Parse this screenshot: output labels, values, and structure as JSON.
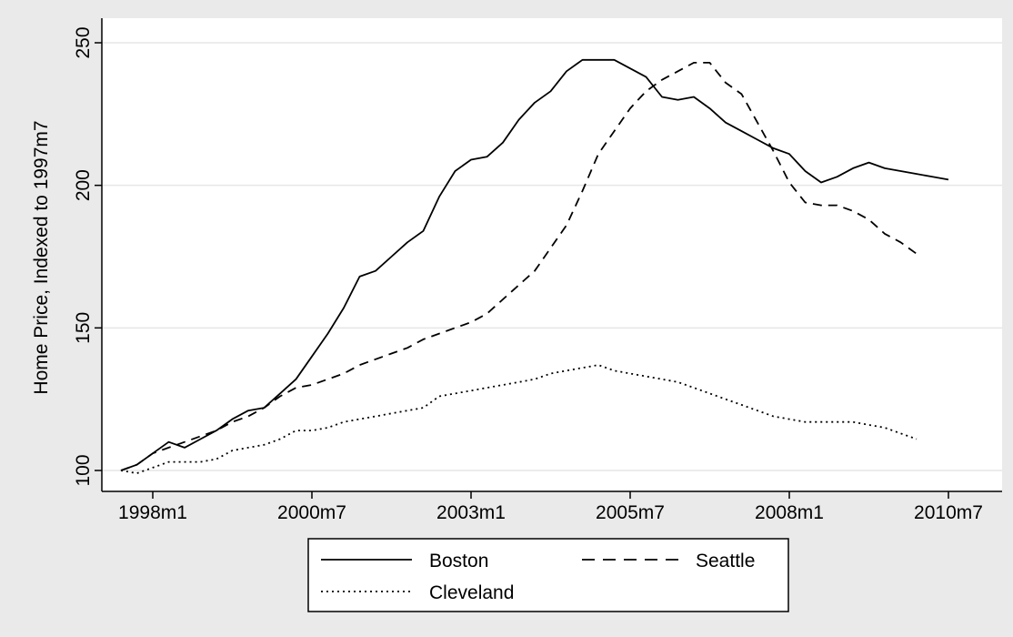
{
  "chart_data": {
    "type": "line",
    "title": "",
    "xlabel": "",
    "ylabel": "Home Price, Indexed to 1997m7",
    "x_ticks": [
      "1998m1",
      "2000m7",
      "2003m1",
      "2005m7",
      "2008m1",
      "2010m7"
    ],
    "y_ticks": [
      100,
      150,
      200,
      250
    ],
    "ylim": [
      100,
      250
    ],
    "xlim": [
      "1997m7",
      "2011m1"
    ],
    "grid": "horizontal",
    "legend_position": "bottom",
    "series": [
      {
        "name": "Boston",
        "dash": "solid",
        "points": [
          [
            "1997m7",
            100
          ],
          [
            "1997m10",
            102
          ],
          [
            "1998m1",
            106
          ],
          [
            "1998m4",
            110
          ],
          [
            "1998m7",
            108
          ],
          [
            "1998m10",
            111
          ],
          [
            "1999m1",
            114
          ],
          [
            "1999m4",
            118
          ],
          [
            "1999m7",
            121
          ],
          [
            "1999m10",
            122
          ],
          [
            "2000m1",
            127
          ],
          [
            "2000m4",
            132
          ],
          [
            "2000m7",
            140
          ],
          [
            "2000m10",
            148
          ],
          [
            "2001m1",
            157
          ],
          [
            "2001m4",
            168
          ],
          [
            "2001m7",
            170
          ],
          [
            "2001m10",
            175
          ],
          [
            "2002m1",
            180
          ],
          [
            "2002m4",
            184
          ],
          [
            "2002m7",
            196
          ],
          [
            "2002m10",
            205
          ],
          [
            "2003m1",
            209
          ],
          [
            "2003m4",
            210
          ],
          [
            "2003m7",
            215
          ],
          [
            "2003m10",
            223
          ],
          [
            "2004m1",
            229
          ],
          [
            "2004m4",
            233
          ],
          [
            "2004m7",
            240
          ],
          [
            "2004m10",
            244
          ],
          [
            "2005m1",
            244
          ],
          [
            "2005m4",
            244
          ],
          [
            "2005m7",
            241
          ],
          [
            "2005m10",
            238
          ],
          [
            "2006m1",
            231
          ],
          [
            "2006m4",
            230
          ],
          [
            "2006m7",
            231
          ],
          [
            "2006m10",
            227
          ],
          [
            "2007m1",
            222
          ],
          [
            "2007m4",
            219
          ],
          [
            "2007m7",
            216
          ],
          [
            "2007m10",
            213
          ],
          [
            "2008m1",
            211
          ],
          [
            "2008m4",
            205
          ],
          [
            "2008m7",
            201
          ],
          [
            "2008m10",
            203
          ],
          [
            "2009m1",
            206
          ],
          [
            "2009m4",
            208
          ],
          [
            "2009m7",
            206
          ],
          [
            "2009m10",
            205
          ],
          [
            "2010m1",
            204
          ],
          [
            "2010m4",
            203
          ],
          [
            "2010m7",
            202
          ]
        ]
      },
      {
        "name": "Seattle",
        "dash": "dashed",
        "points": [
          [
            "1997m7",
            100
          ],
          [
            "1997m10",
            102
          ],
          [
            "1998m1",
            106
          ],
          [
            "1998m4",
            108
          ],
          [
            "1998m7",
            110
          ],
          [
            "1998m10",
            112
          ],
          [
            "1999m1",
            114
          ],
          [
            "1999m4",
            117
          ],
          [
            "1999m7",
            119
          ],
          [
            "1999m10",
            122
          ],
          [
            "2000m1",
            126
          ],
          [
            "2000m4",
            129
          ],
          [
            "2000m7",
            130
          ],
          [
            "2000m10",
            132
          ],
          [
            "2001m1",
            134
          ],
          [
            "2001m4",
            137
          ],
          [
            "2001m7",
            139
          ],
          [
            "2001m10",
            141
          ],
          [
            "2002m1",
            143
          ],
          [
            "2002m4",
            146
          ],
          [
            "2002m7",
            148
          ],
          [
            "2002m10",
            150
          ],
          [
            "2003m1",
            152
          ],
          [
            "2003m4",
            155
          ],
          [
            "2003m7",
            160
          ],
          [
            "2003m10",
            165
          ],
          [
            "2004m1",
            170
          ],
          [
            "2004m4",
            178
          ],
          [
            "2004m7",
            186
          ],
          [
            "2004m10",
            198
          ],
          [
            "2005m1",
            211
          ],
          [
            "2005m4",
            219
          ],
          [
            "2005m7",
            227
          ],
          [
            "2005m10",
            233
          ],
          [
            "2006m1",
            237
          ],
          [
            "2006m4",
            240
          ],
          [
            "2006m7",
            243
          ],
          [
            "2006m10",
            243
          ],
          [
            "2007m1",
            236
          ],
          [
            "2007m4",
            232
          ],
          [
            "2007m7",
            222
          ],
          [
            "2007m10",
            212
          ],
          [
            "2008m1",
            201
          ],
          [
            "2008m4",
            194
          ],
          [
            "2008m7",
            193
          ],
          [
            "2008m10",
            193
          ],
          [
            "2009m1",
            191
          ],
          [
            "2009m4",
            188
          ],
          [
            "2009m7",
            183
          ],
          [
            "2009m10",
            180
          ],
          [
            "2010m1",
            176
          ]
        ]
      },
      {
        "name": "Cleveland",
        "dash": "dotted",
        "points": [
          [
            "1997m7",
            100
          ],
          [
            "1997m10",
            99
          ],
          [
            "1998m1",
            101
          ],
          [
            "1998m4",
            103
          ],
          [
            "1998m7",
            103
          ],
          [
            "1998m10",
            103
          ],
          [
            "1999m1",
            104
          ],
          [
            "1999m4",
            107
          ],
          [
            "1999m7",
            108
          ],
          [
            "1999m10",
            109
          ],
          [
            "2000m1",
            111
          ],
          [
            "2000m4",
            114
          ],
          [
            "2000m7",
            114
          ],
          [
            "2000m10",
            115
          ],
          [
            "2001m1",
            117
          ],
          [
            "2001m4",
            118
          ],
          [
            "2001m7",
            119
          ],
          [
            "2001m10",
            120
          ],
          [
            "2002m1",
            121
          ],
          [
            "2002m4",
            122
          ],
          [
            "2002m7",
            126
          ],
          [
            "2002m10",
            127
          ],
          [
            "2003m1",
            128
          ],
          [
            "2003m4",
            129
          ],
          [
            "2003m7",
            130
          ],
          [
            "2003m10",
            131
          ],
          [
            "2004m1",
            132
          ],
          [
            "2004m4",
            134
          ],
          [
            "2004m7",
            135
          ],
          [
            "2004m10",
            136
          ],
          [
            "2005m1",
            137
          ],
          [
            "2005m4",
            135
          ],
          [
            "2005m7",
            134
          ],
          [
            "2005m10",
            133
          ],
          [
            "2006m1",
            132
          ],
          [
            "2006m4",
            131
          ],
          [
            "2006m7",
            129
          ],
          [
            "2006m10",
            127
          ],
          [
            "2007m1",
            125
          ],
          [
            "2007m4",
            123
          ],
          [
            "2007m7",
            121
          ],
          [
            "2007m10",
            119
          ],
          [
            "2008m1",
            118
          ],
          [
            "2008m4",
            117
          ],
          [
            "2008m7",
            117
          ],
          [
            "2008m10",
            117
          ],
          [
            "2009m1",
            117
          ],
          [
            "2009m4",
            116
          ],
          [
            "2009m7",
            115
          ],
          [
            "2009m10",
            113
          ],
          [
            "2010m1",
            111
          ]
        ]
      }
    ]
  },
  "colors": {
    "page_background": "#eaeaea",
    "plot_background": "#ffffff",
    "gridline": "#e6e6e6",
    "series_line": "#000000"
  }
}
